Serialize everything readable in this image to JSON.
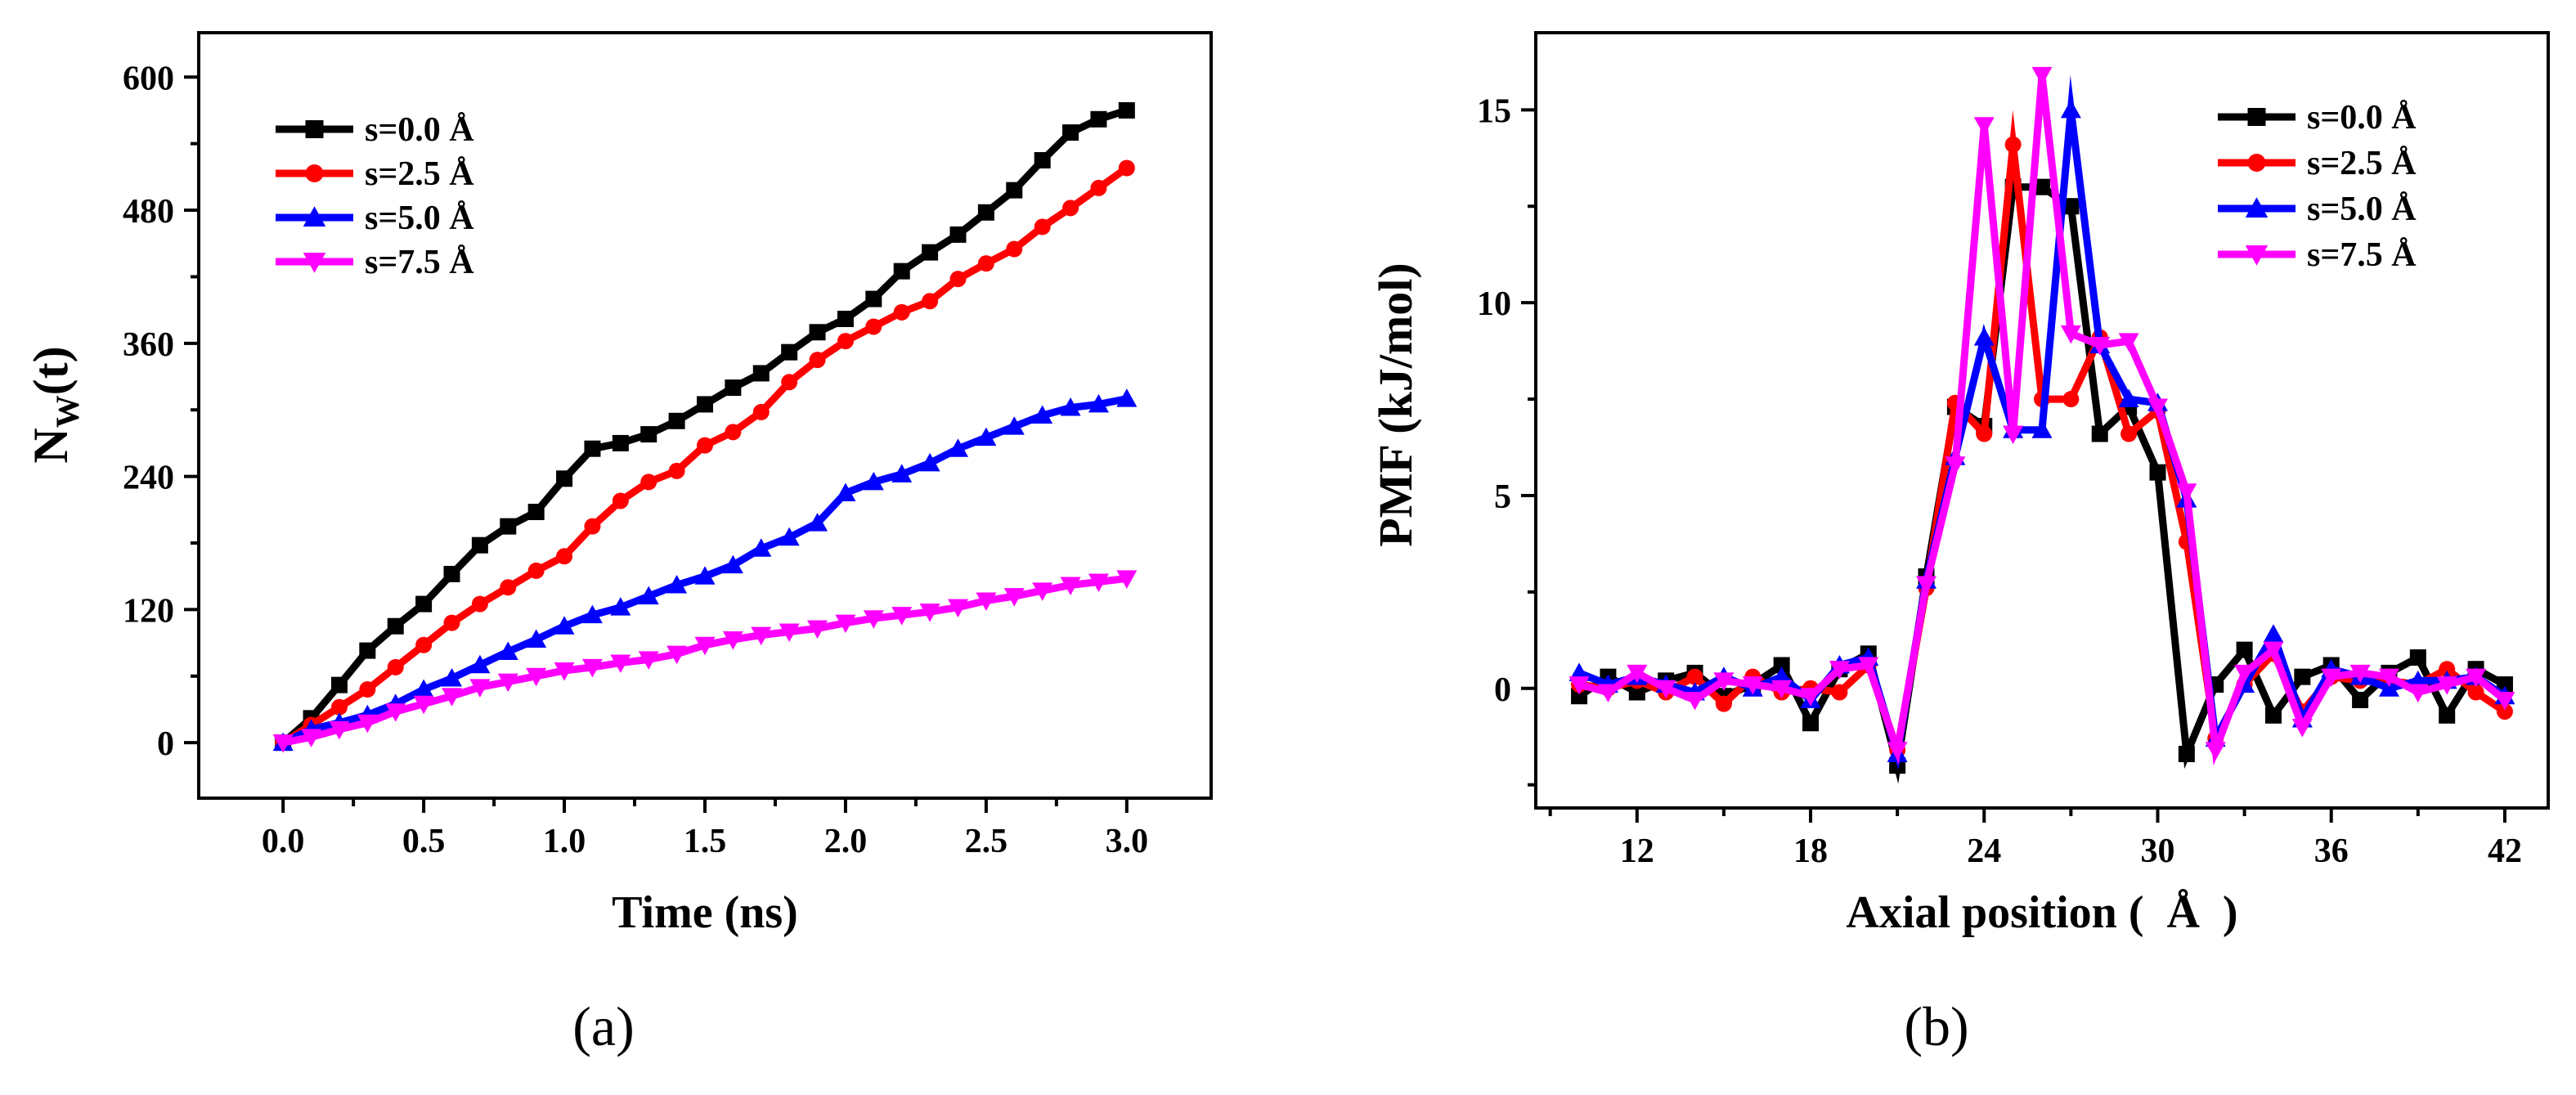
{
  "chart_data": [
    {
      "id": "a",
      "type": "line",
      "panel_label": "(a)",
      "xlabel": "Time (ns)",
      "ylabel_main": "N",
      "ylabel_sub": "W",
      "ylabel_tail": "(t)",
      "xlim": [
        -0.3,
        3.3
      ],
      "ylim": [
        -50,
        640
      ],
      "xticks": [
        0.0,
        0.5,
        1.0,
        1.5,
        2.0,
        2.5,
        3.0
      ],
      "xtick_labels": [
        "0.0",
        "0.5",
        "1.0",
        "1.5",
        "2.0",
        "2.5",
        "3.0"
      ],
      "yticks": [
        0,
        120,
        240,
        360,
        480,
        600
      ],
      "ytick_labels": [
        "0",
        "120",
        "240",
        "360",
        "480",
        "600"
      ],
      "legend_position": "top-left",
      "x": [
        0.0,
        0.1,
        0.2,
        0.3,
        0.4,
        0.5,
        0.6,
        0.7,
        0.8,
        0.9,
        1.0,
        1.1,
        1.2,
        1.3,
        1.4,
        1.5,
        1.6,
        1.7,
        1.8,
        1.9,
        2.0,
        2.1,
        2.2,
        2.3,
        2.4,
        2.5,
        2.6,
        2.7,
        2.8,
        2.9,
        3.0
      ],
      "series": [
        {
          "name": "s=0.0 Å",
          "color": "#000000",
          "marker": "square",
          "values": [
            0,
            22,
            52,
            83,
            105,
            125,
            152,
            178,
            195,
            208,
            238,
            265,
            270,
            278,
            290,
            305,
            320,
            333,
            352,
            370,
            382,
            400,
            425,
            442,
            458,
            478,
            498,
            525,
            550,
            562,
            570
          ]
        },
        {
          "name": "s=2.5 Å",
          "color": "#ff0000",
          "marker": "circle",
          "values": [
            0,
            16,
            32,
            48,
            68,
            88,
            108,
            125,
            140,
            155,
            168,
            195,
            218,
            235,
            245,
            268,
            280,
            298,
            325,
            345,
            362,
            375,
            388,
            398,
            418,
            432,
            445,
            465,
            482,
            500,
            518
          ]
        },
        {
          "name": "s=5.0 Å",
          "color": "#0000ff",
          "marker": "triangle-up",
          "values": [
            0,
            12,
            18,
            25,
            35,
            48,
            58,
            70,
            82,
            93,
            105,
            115,
            122,
            132,
            142,
            150,
            160,
            175,
            185,
            198,
            225,
            235,
            242,
            252,
            265,
            275,
            285,
            295,
            302,
            305,
            310
          ]
        },
        {
          "name": "s=7.5 Å",
          "color": "#ff00ff",
          "marker": "triangle-down",
          "values": [
            0,
            5,
            12,
            18,
            28,
            35,
            42,
            50,
            55,
            60,
            65,
            68,
            72,
            75,
            80,
            88,
            93,
            97,
            100,
            103,
            108,
            112,
            115,
            118,
            122,
            128,
            132,
            137,
            142,
            145,
            148
          ]
        }
      ]
    },
    {
      "id": "b",
      "type": "line",
      "panel_label": "(b)",
      "xlabel": "Axial position (  Å  )",
      "ylabel": "PMF (kJ/mol)",
      "xlim": [
        8.5,
        43.5
      ],
      "ylim": [
        -3.1,
        17.0
      ],
      "xticks": [
        12,
        18,
        24,
        30,
        36,
        42
      ],
      "xtick_labels": [
        "12",
        "18",
        "24",
        "30",
        "36",
        "42"
      ],
      "yticks": [
        0,
        5,
        10,
        15
      ],
      "ytick_labels": [
        "0",
        "5",
        "10",
        "15"
      ],
      "legend_position": "top-right",
      "x": [
        10,
        11,
        12,
        13,
        14,
        15,
        16,
        17,
        18,
        19,
        20,
        21,
        22,
        23,
        24,
        25,
        26,
        27,
        28,
        29,
        30,
        31,
        32,
        33,
        34,
        35,
        36,
        37,
        38,
        39,
        40,
        41,
        42
      ],
      "series": [
        {
          "name": "s=0.0 Å",
          "color": "#000000",
          "marker": "square",
          "values": [
            -0.2,
            0.3,
            -0.1,
            0.2,
            0.4,
            -0.2,
            0.1,
            0.6,
            -0.9,
            0.5,
            0.9,
            -2.0,
            2.9,
            7.3,
            6.8,
            13.0,
            13.0,
            12.5,
            6.6,
            7.3,
            5.6,
            -1.7,
            0.1,
            1.0,
            -0.7,
            0.3,
            0.6,
            -0.3,
            0.4,
            0.8,
            -0.7,
            0.5,
            0.1
          ]
        },
        {
          "name": "s=2.5 Å",
          "color": "#ff0000",
          "marker": "circle",
          "values": [
            0.1,
            0.0,
            0.2,
            -0.1,
            0.3,
            -0.4,
            0.3,
            -0.1,
            0.0,
            -0.1,
            0.6,
            -1.6,
            2.6,
            7.4,
            6.6,
            14.1,
            7.5,
            7.5,
            9.1,
            6.6,
            7.2,
            3.8,
            -1.3,
            0.1,
            0.9,
            -0.6,
            0.3,
            0.2,
            0.2,
            0.1,
            0.5,
            -0.1,
            -0.6
          ]
        },
        {
          "name": "s=5.0 Å",
          "color": "#0000ff",
          "marker": "triangle-up",
          "values": [
            0.4,
            0.1,
            0.3,
            0.1,
            -0.1,
            0.3,
            0.0,
            0.3,
            -0.3,
            0.6,
            0.8,
            -1.7,
            2.8,
            6.0,
            9.1,
            6.7,
            6.7,
            15.0,
            8.9,
            7.5,
            7.4,
            4.9,
            -1.3,
            0.1,
            1.4,
            -0.8,
            0.5,
            0.3,
            0.0,
            0.2,
            0.2,
            0.3,
            -0.2
          ]
        },
        {
          "name": "s=7.5 Å",
          "color": "#ff00ff",
          "marker": "triangle-down",
          "values": [
            0.1,
            -0.1,
            0.4,
            0.0,
            -0.3,
            0.2,
            0.1,
            0.0,
            -0.2,
            0.5,
            0.6,
            -1.6,
            2.7,
            5.8,
            14.6,
            6.6,
            15.9,
            9.2,
            8.9,
            9.0,
            7.3,
            5.1,
            -1.6,
            0.4,
            1.0,
            -1.0,
            0.3,
            0.4,
            0.3,
            -0.1,
            0.1,
            0.3,
            -0.3
          ]
        }
      ]
    }
  ]
}
